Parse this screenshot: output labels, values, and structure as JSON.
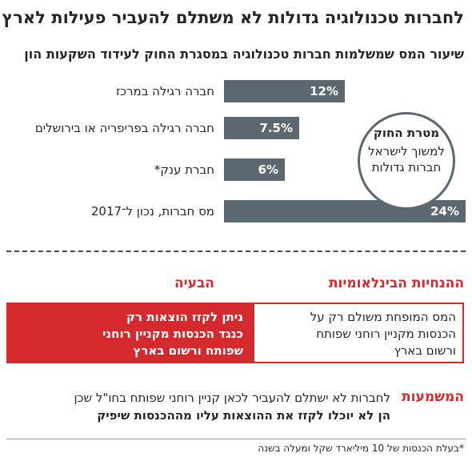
{
  "header": {
    "title": "לחברות טכנולוגיה גדולות לא משתלם להעביר פעילות לארץ",
    "subtitle": "שיעור המס שמשלמות חברות טכנולוגיה במסגרת החוק לעידוד השקעות הון"
  },
  "chart_data": {
    "type": "bar",
    "orientation": "horizontal",
    "title": "",
    "categories": [
      "חברה רגילה במרכז",
      "חברה רגילה בפריפריה או בירושלים",
      "חברת ענק*",
      "מס חברות, נכון ל־2017"
    ],
    "values": [
      12,
      7.5,
      6,
      24
    ],
    "value_labels": [
      "12%",
      "7.5%",
      "6%",
      "24%"
    ],
    "xlim": [
      0,
      24
    ],
    "grid": false,
    "bar_color": "#5c6870"
  },
  "goal": {
    "title": "מטרת החוק",
    "lines": [
      "למשוך לישראל",
      "חברות גדולות"
    ]
  },
  "comparison": {
    "left_heading": "הבעיה",
    "right_heading": "ההנחיות הבינלאומיות",
    "right_box_lines": [
      "המס המופחת משולם רק על",
      "הכנסות מקניין רוחני שפותח",
      "ורשום בארץ"
    ],
    "left_box_lines": [
      "ניתן לקזז הוצאות רק",
      "כנגד הכנסות מקניין רוחני",
      "שפותח ורשום בארץ"
    ]
  },
  "implication": {
    "label": "המשמעות",
    "line1": "לחברות לא ישתלם להעביר לכאן קניין רוחני שפותח בחו\"ל שכן",
    "line2": "הן לא יוכלו לקזז את ההוצאות עליו מההכנסות שיפיק"
  },
  "footnote": "*בעלת הכנסות של 10 מיליארד שקל ומעלה בשנה",
  "colors": {
    "accent_red": "#d42a2e",
    "bar_gray": "#5c6870"
  }
}
